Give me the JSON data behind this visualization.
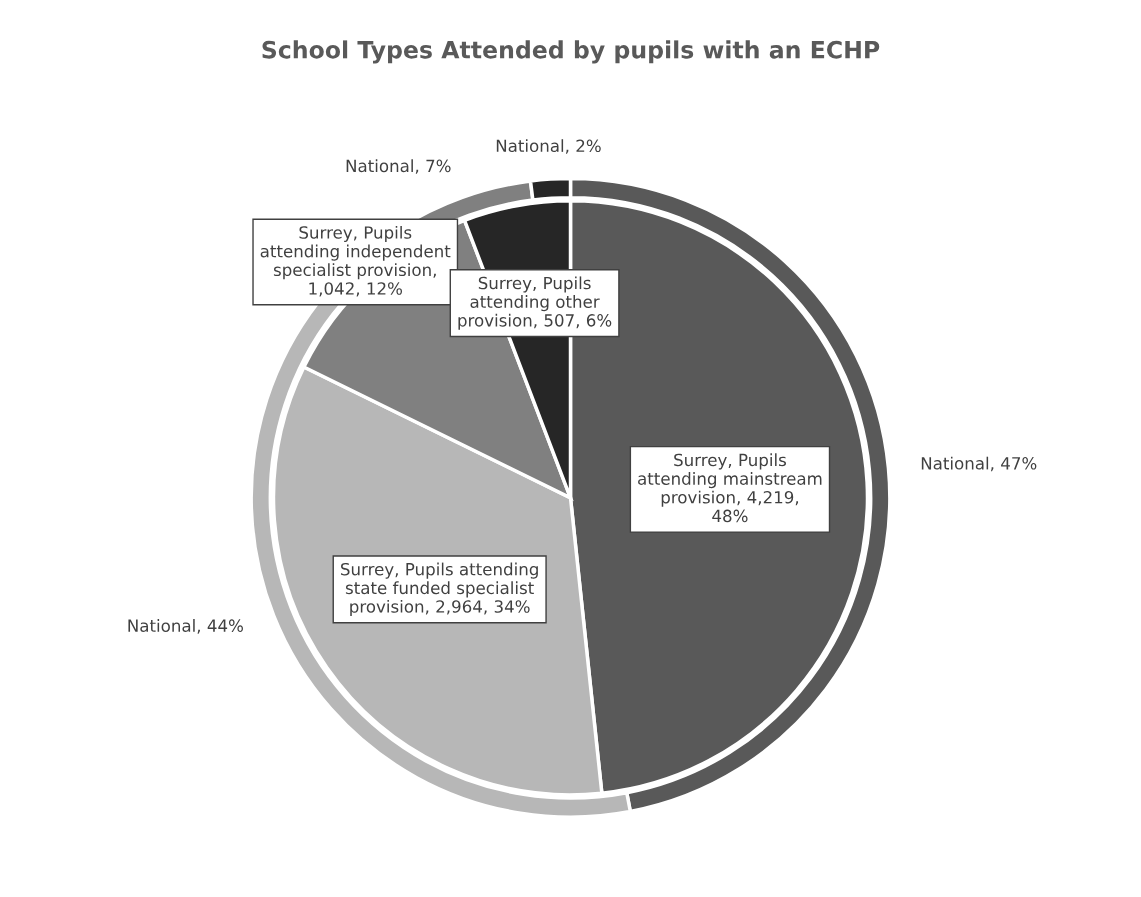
{
  "chart_data": {
    "type": "donut",
    "title": "School Types Attended by pupils with an ECHP",
    "categories": [
      null,
      null,
      null,
      null
    ],
    "colors": [
      "#595959",
      "#b7b7b7",
      "#808080",
      "#262626"
    ],
    "series": [
      {
        "type": "pie",
        "values": [
          4219,
          2964,
          1042,
          507
        ],
        "value_labels": [
          "Surrey, Pupils attending mainstream provision, 4,219, 48%",
          "Surrey, Pupils attending state funded specialist provision, 2,964, 34%",
          "Surrey, Pupils attending independent specialist provision, 1,042, 12%",
          "Surrey, Pupils attending other provision, 507, 6%"
        ]
      },
      {
        "values": [
          47,
          44,
          7,
          2
        ],
        "value_labels": [
          "National, 47%",
          "National, 44%",
          "National, 7%",
          "National, 2%"
        ]
      }
    ],
    "legend": false
  }
}
